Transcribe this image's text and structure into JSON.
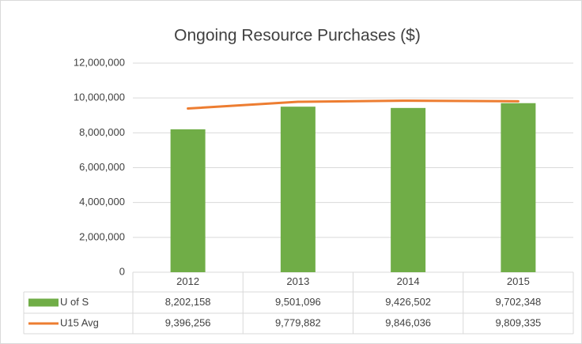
{
  "chart_data": {
    "type": "bar-line",
    "title": "Ongoing Resource Purchases ($)",
    "categories": [
      "2012",
      "2013",
      "2014",
      "2015"
    ],
    "series": [
      {
        "name": "U of S",
        "type": "bar",
        "color": "#70ad47",
        "values": [
          8202158,
          9501096,
          9426502,
          9702348
        ],
        "value_labels": [
          "8,202,158",
          "9,501,096",
          "9,426,502",
          "9,702,348"
        ]
      },
      {
        "name": "U15 Avg",
        "type": "line",
        "color": "#ed7d31",
        "values": [
          9396256,
          9779882,
          9846036,
          9809335
        ],
        "value_labels": [
          "9,396,256",
          "9,779,882",
          "9,846,036",
          "9,809,335"
        ]
      }
    ],
    "ylim": [
      0,
      12000000
    ],
    "yticks": [
      0,
      {
        "value": 2000000,
        "label": "2,000,000"
      },
      {
        "value": 4000000,
        "label": "4,000,000"
      },
      {
        "value": 6000000,
        "label": "6,000,000"
      },
      {
        "value": 8000000,
        "label": "8,000,000"
      },
      {
        "value": 10000000,
        "label": "10,000,000"
      },
      {
        "value": 12000000,
        "label": "12,000,000"
      }
    ],
    "grid": true
  }
}
